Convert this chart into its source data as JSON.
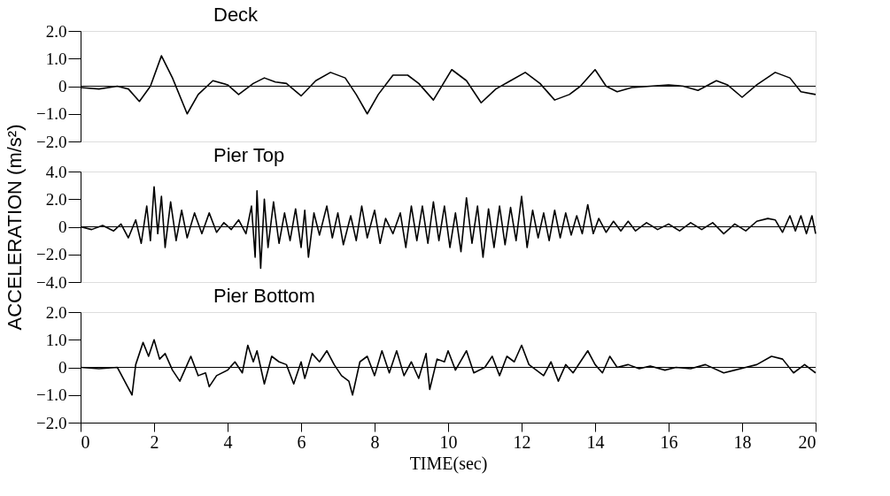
{
  "chart_data": [
    {
      "type": "line",
      "title": "Deck",
      "tick_labels": "y",
      "grid": false,
      "xlim": [
        0,
        20
      ],
      "ylim": [
        -2,
        2
      ],
      "yticks": [
        {
          "value": 2,
          "label": "2.0"
        },
        {
          "value": 1,
          "label": "1.0"
        },
        0,
        {
          "value": -1,
          "label": "−1.0"
        },
        {
          "value": -2,
          "label": "−2.0"
        }
      ],
      "ref_lines": [
        {
          "axis": "y",
          "value": 0,
          "color": "#000000"
        }
      ],
      "x": [
        0,
        0.5,
        1.0,
        1.3,
        1.6,
        1.9,
        2.2,
        2.5,
        2.9,
        3.2,
        3.6,
        4.0,
        4.3,
        4.7,
        5.0,
        5.3,
        5.6,
        6.0,
        6.4,
        6.8,
        7.2,
        7.5,
        7.8,
        8.1,
        8.5,
        8.9,
        9.2,
        9.6,
        10.1,
        10.5,
        10.9,
        11.3,
        11.7,
        12.1,
        12.5,
        12.9,
        13.3,
        13.6,
        14.0,
        14.3,
        14.6,
        15.0,
        15.5,
        16.0,
        16.4,
        16.8,
        17.3,
        17.6,
        18.0,
        18.4,
        18.9,
        19.3,
        19.6,
        20
      ],
      "series": [
        {
          "color": "#000000",
          "values": [
            -0.05,
            -0.1,
            0,
            -0.1,
            -0.55,
            0,
            1.1,
            0.3,
            -1.0,
            -0.3,
            0.2,
            0.05,
            -0.3,
            0.1,
            0.3,
            0.15,
            0.1,
            -0.35,
            0.2,
            0.5,
            0.3,
            -0.3,
            -1.0,
            -0.3,
            0.4,
            0.4,
            0.1,
            -0.5,
            0.6,
            0.2,
            -0.6,
            -0.1,
            0.2,
            0.5,
            0.1,
            -0.5,
            -0.3,
            0.0,
            0.6,
            0.0,
            -0.2,
            -0.05,
            0.0,
            0.05,
            0.0,
            -0.15,
            0.2,
            0.05,
            -0.4,
            0.05,
            0.5,
            0.3,
            -0.2,
            -0.3
          ]
        }
      ]
    },
    {
      "type": "line",
      "title": "Pier Top",
      "ylabel": "ACCELERATION (m/s²)",
      "tick_labels": "y",
      "grid": false,
      "xlim": [
        0,
        20
      ],
      "ylim": [
        -4,
        4
      ],
      "yticks": [
        {
          "value": 4,
          "label": "4.0"
        },
        {
          "value": 2,
          "label": "2.0"
        },
        0,
        {
          "value": -2,
          "label": "−2.0"
        },
        {
          "value": -4,
          "label": "−4.0"
        }
      ],
      "ref_lines": [
        {
          "axis": "y",
          "value": 0,
          "color": "#000000"
        }
      ],
      "x": [
        0,
        0.3,
        0.6,
        0.9,
        1.1,
        1.3,
        1.5,
        1.65,
        1.8,
        1.9,
        2.0,
        2.1,
        2.2,
        2.3,
        2.45,
        2.6,
        2.75,
        2.9,
        3.1,
        3.3,
        3.5,
        3.7,
        3.9,
        4.1,
        4.3,
        4.5,
        4.65,
        4.75,
        4.8,
        4.9,
        5.0,
        5.1,
        5.25,
        5.4,
        5.55,
        5.7,
        5.85,
        6.0,
        6.1,
        6.2,
        6.35,
        6.5,
        6.7,
        6.85,
        7.0,
        7.15,
        7.35,
        7.5,
        7.65,
        7.8,
        8.0,
        8.15,
        8.3,
        8.5,
        8.7,
        8.85,
        9.0,
        9.15,
        9.3,
        9.45,
        9.6,
        9.75,
        9.9,
        10.05,
        10.2,
        10.35,
        10.5,
        10.65,
        10.8,
        10.95,
        11.1,
        11.25,
        11.4,
        11.55,
        11.7,
        11.85,
        12.0,
        12.15,
        12.3,
        12.45,
        12.6,
        12.75,
        12.9,
        13.05,
        13.2,
        13.35,
        13.5,
        13.65,
        13.8,
        13.95,
        14.1,
        14.3,
        14.5,
        14.7,
        14.9,
        15.1,
        15.4,
        15.7,
        16.0,
        16.3,
        16.6,
        16.9,
        17.2,
        17.5,
        17.8,
        18.1,
        18.4,
        18.7,
        18.9,
        19.1,
        19.3,
        19.45,
        19.6,
        19.75,
        19.9,
        20
      ],
      "series": [
        {
          "color": "#000000",
          "values": [
            0,
            -0.2,
            0.1,
            -0.3,
            0.2,
            -0.8,
            0.5,
            -1.2,
            1.5,
            -1.0,
            2.9,
            -0.5,
            2.2,
            -1.5,
            1.8,
            -1.0,
            1.2,
            -0.8,
            1.0,
            -0.5,
            1.0,
            -0.4,
            0.3,
            -0.2,
            0.5,
            -0.5,
            1.5,
            -2.2,
            2.6,
            -3.0,
            2.0,
            -1.5,
            1.8,
            -1.2,
            1.0,
            -1.0,
            1.3,
            -1.5,
            1.2,
            -2.2,
            1.0,
            -0.6,
            1.5,
            -0.8,
            1.0,
            -1.3,
            0.8,
            -1.0,
            1.5,
            -0.8,
            1.2,
            -1.2,
            0.6,
            -0.5,
            1.0,
            -1.5,
            1.5,
            -1.0,
            1.5,
            -1.2,
            1.8,
            -1.0,
            1.5,
            -1.5,
            1.0,
            -1.8,
            2.1,
            -1.2,
            1.5,
            -2.2,
            1.3,
            -1.5,
            1.5,
            -1.3,
            1.4,
            -1.0,
            2.2,
            -1.5,
            1.2,
            -0.8,
            1.0,
            -1.0,
            1.2,
            -0.8,
            1.0,
            -0.6,
            0.8,
            -0.5,
            1.6,
            -0.5,
            0.6,
            -0.4,
            0.4,
            -0.3,
            0.4,
            -0.3,
            0.3,
            -0.2,
            0.2,
            -0.3,
            0.3,
            -0.2,
            0.3,
            -0.5,
            0.2,
            -0.3,
            0.4,
            0.6,
            0.5,
            -0.4,
            0.8,
            -0.3,
            0.8,
            -0.5,
            0.8,
            -0.5
          ]
        }
      ]
    },
    {
      "type": "line",
      "title": "Pier Bottom",
      "xlabel": "TIME(sec)",
      "grid": false,
      "xlim": [
        0,
        20
      ],
      "ylim": [
        -2,
        2
      ],
      "xticks": [
        0,
        2,
        4,
        6,
        8,
        10,
        12,
        14,
        16,
        18,
        20
      ],
      "yticks": [
        {
          "value": 2,
          "label": "2.0"
        },
        {
          "value": 1,
          "label": "1.0"
        },
        0,
        {
          "value": -1,
          "label": "−1.0"
        },
        {
          "value": -2,
          "label": "−2.0"
        }
      ],
      "ref_lines": [
        {
          "axis": "y",
          "value": 0,
          "color": "#000000"
        }
      ],
      "x": [
        0,
        0.5,
        1.0,
        1.2,
        1.4,
        1.5,
        1.7,
        1.85,
        2.0,
        2.15,
        2.3,
        2.5,
        2.7,
        2.9,
        3.0,
        3.2,
        3.4,
        3.5,
        3.7,
        4.0,
        4.2,
        4.4,
        4.55,
        4.7,
        4.8,
        5.0,
        5.2,
        5.4,
        5.6,
        5.8,
        6.0,
        6.1,
        6.3,
        6.5,
        6.7,
        6.9,
        7.1,
        7.3,
        7.4,
        7.6,
        7.8,
        8.0,
        8.2,
        8.4,
        8.6,
        8.8,
        9.0,
        9.2,
        9.4,
        9.5,
        9.7,
        9.9,
        10.0,
        10.2,
        10.5,
        10.7,
        11.0,
        11.2,
        11.4,
        11.6,
        11.8,
        12.0,
        12.2,
        12.4,
        12.6,
        12.8,
        13.0,
        13.2,
        13.4,
        13.6,
        13.8,
        14.0,
        14.2,
        14.4,
        14.6,
        14.9,
        15.2,
        15.5,
        15.9,
        16.2,
        16.6,
        17.0,
        17.5,
        17.8,
        18.1,
        18.4,
        18.8,
        19.1,
        19.4,
        19.7,
        20.0
      ],
      "series": [
        {
          "color": "#000000",
          "values": [
            0,
            -0.05,
            0,
            -0.5,
            -1.0,
            0.1,
            0.9,
            0.4,
            1.0,
            0.3,
            0.5,
            -0.1,
            -0.5,
            0.1,
            0.4,
            -0.3,
            -0.2,
            -0.7,
            -0.3,
            -0.1,
            0.2,
            -0.2,
            0.8,
            0.2,
            0.6,
            -0.6,
            0.4,
            0.2,
            0.1,
            -0.6,
            0.2,
            -0.4,
            0.5,
            0.2,
            0.6,
            0.1,
            -0.3,
            -0.5,
            -1.0,
            0.2,
            0.4,
            -0.3,
            0.6,
            -0.2,
            0.6,
            -0.3,
            0.2,
            -0.4,
            0.5,
            -0.8,
            0.3,
            0.2,
            0.6,
            -0.1,
            0.6,
            -0.2,
            0.0,
            0.4,
            -0.3,
            0.4,
            0.2,
            0.8,
            0.1,
            -0.1,
            -0.3,
            0.2,
            -0.5,
            0.1,
            -0.2,
            0.2,
            0.6,
            0.1,
            -0.2,
            0.4,
            0.0,
            0.1,
            -0.05,
            0.05,
            -0.1,
            0.0,
            -0.05,
            0.1,
            -0.2,
            -0.1,
            0.0,
            0.1,
            0.4,
            0.3,
            -0.2,
            0.1,
            -0.2
          ]
        }
      ]
    }
  ]
}
